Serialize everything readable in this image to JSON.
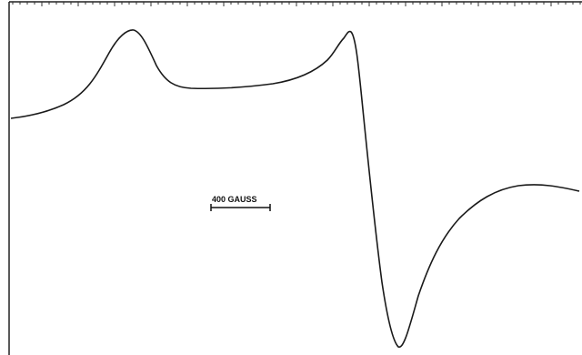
{
  "scale_bar": {
    "label": "400 GAUSS"
  }
}
